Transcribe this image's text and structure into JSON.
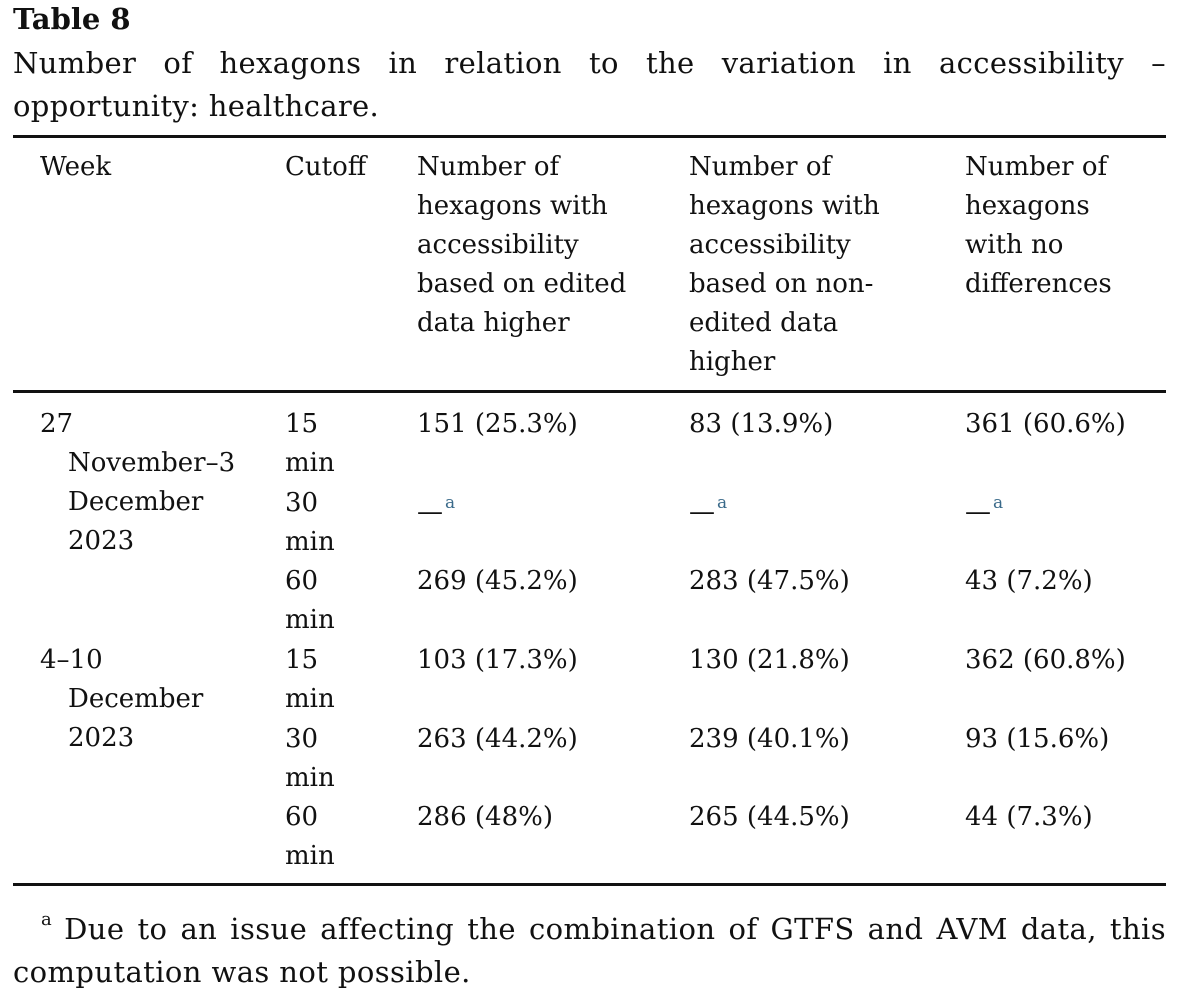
{
  "table": {
    "label": "Table 8",
    "caption": "Number of hexagons in relation to the variation in accessibility – opportunity: healthcare.",
    "headers": {
      "week": "Week",
      "cutoff": "Cutoff",
      "edited": "Number of hexagons with accessibility based on edited data higher",
      "nonedited": "Number of hexagons with accessibility based on non-edited data higher",
      "nodiff": "Number of hexagons with no differences"
    },
    "groups": [
      {
        "week_lines": [
          "27",
          "November–3",
          "December",
          "2023"
        ],
        "rows": [
          {
            "cutoff": "15 min",
            "edited": "151 (25.3%)",
            "nonedited": "83 (13.9%)",
            "nodiff": "361 (60.6%)"
          },
          {
            "cutoff": "30 min",
            "edited": "—",
            "nonedited": "—",
            "nodiff": "—",
            "footnote_mark": "a"
          },
          {
            "cutoff": "60 min",
            "edited": "269 (45.2%)",
            "nonedited": "283 (47.5%)",
            "nodiff": "43 (7.2%)"
          }
        ]
      },
      {
        "week_lines": [
          "4–10",
          "December",
          "2023"
        ],
        "rows": [
          {
            "cutoff": "15 min",
            "edited": "103 (17.3%)",
            "nonedited": "130 (21.8%)",
            "nodiff": "362 (60.8%)"
          },
          {
            "cutoff": "30 min",
            "edited": "263 (44.2%)",
            "nonedited": "239 (40.1%)",
            "nodiff": "93 (15.6%)"
          },
          {
            "cutoff": "60 min",
            "edited": "286 (48%)",
            "nonedited": "265 (44.5%)",
            "nodiff": "44 (7.3%)"
          }
        ]
      }
    ],
    "footnote": {
      "mark": "a",
      "text": "Due to an issue affecting the combination of GTFS and AVM data, this computation was not possible."
    }
  }
}
